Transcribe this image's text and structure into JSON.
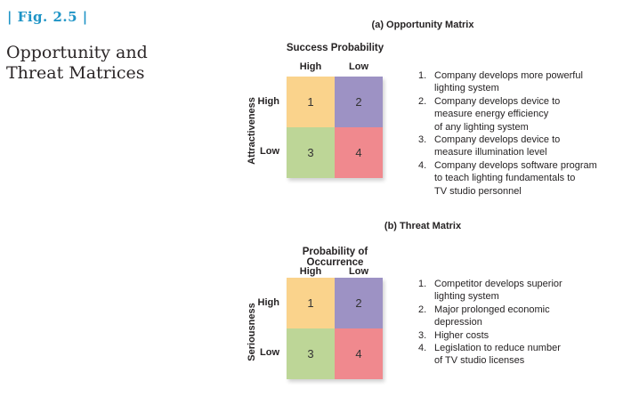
{
  "figure": {
    "label": "| Fig. 2.5 |",
    "title": "Opportunity and\nThreat Matrices"
  },
  "colors": {
    "accent_blue": "#1e94c6",
    "quadrant_1": "#fad38c",
    "quadrant_2": "#9d92c4",
    "quadrant_3": "#bdd697",
    "quadrant_4": "#f0898e"
  },
  "sections": [
    {
      "title": "(a) Opportunity Matrix",
      "col_axis_title": "Success Probability",
      "col_label_high": "High",
      "col_label_low": "Low",
      "row_axis_title": "Attractiveness",
      "row_label_high": "High",
      "row_label_low": "Low",
      "quadrants": [
        "1",
        "2",
        "3",
        "4"
      ],
      "items": [
        {
          "num": "1.",
          "text": "Company develops more powerful\nlighting system"
        },
        {
          "num": "2.",
          "text": "Company develops device to\nmeasure energy efficiency\nof any lighting system"
        },
        {
          "num": "3.",
          "text": "Company develops device to\nmeasure illumination level"
        },
        {
          "num": "4.",
          "text": "Company develops software program\nto teach lighting fundamentals to\nTV studio personnel"
        }
      ]
    },
    {
      "title": "(b) Threat Matrix",
      "col_axis_title": "Probability of Occurrence",
      "col_label_high": "High",
      "col_label_low": "Low",
      "row_axis_title": "Seriousness",
      "row_label_high": "High",
      "row_label_low": "Low",
      "quadrants": [
        "1",
        "2",
        "3",
        "4"
      ],
      "items": [
        {
          "num": "1.",
          "text": "Competitor develops superior\nlighting system"
        },
        {
          "num": "2.",
          "text": "Major prolonged economic\ndepression"
        },
        {
          "num": "3.",
          "text": "Higher costs"
        },
        {
          "num": "4.",
          "text": "Legislation to reduce number\nof TV studio licenses"
        }
      ]
    }
  ]
}
